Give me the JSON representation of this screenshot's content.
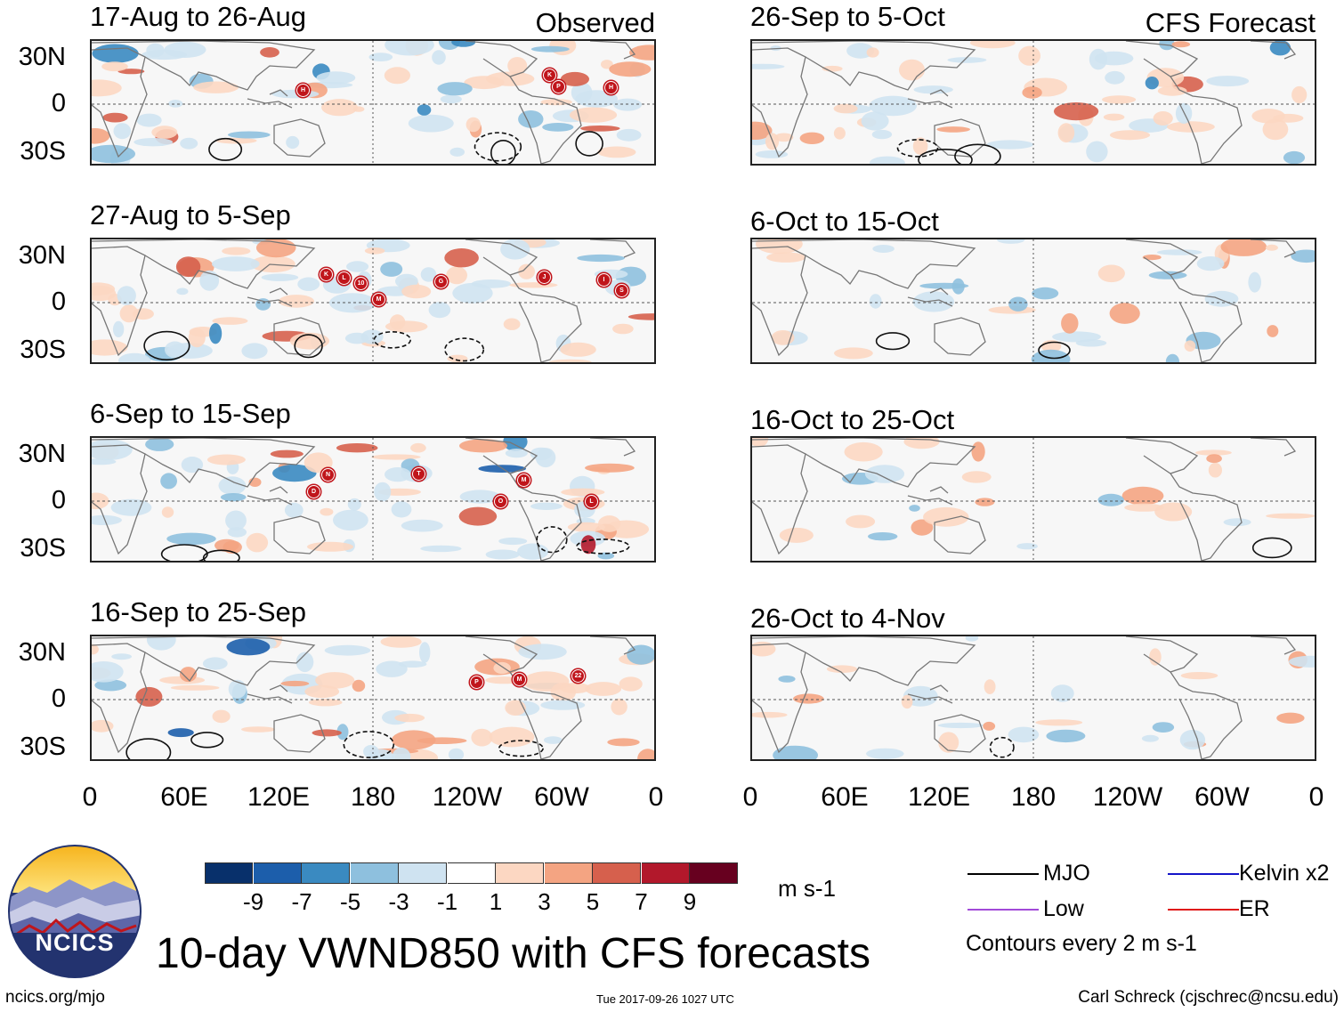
{
  "header": {
    "observed_label": "Observed",
    "forecast_label": "CFS Forecast"
  },
  "observed_panels": [
    {
      "period": "17-Aug to 26-Aug",
      "storms": [
        "H",
        "P",
        "K",
        "H"
      ]
    },
    {
      "period": "27-Aug to 5-Sep",
      "storms": [
        "M",
        "G",
        "S",
        "L",
        "K",
        "10",
        "J",
        "I"
      ]
    },
    {
      "period": "6-Sep to 15-Sep",
      "storms": [
        "D",
        "T",
        "O",
        "N",
        "M",
        "L"
      ]
    },
    {
      "period": "16-Sep to 25-Sep",
      "storms": [
        "22",
        "P",
        "M"
      ]
    }
  ],
  "forecast_panels": [
    {
      "period": "26-Sep to 5-Oct"
    },
    {
      "period": "6-Oct to 15-Oct"
    },
    {
      "period": "16-Oct to 25-Oct"
    },
    {
      "period": "26-Oct to 4-Nov"
    }
  ],
  "axes": {
    "lat_labels": [
      "30N",
      "0",
      "30S"
    ],
    "lon_labels": [
      "0",
      "60E",
      "120E",
      "180",
      "120W",
      "60W",
      "0"
    ]
  },
  "colorbar": {
    "colors": [
      "#08306b",
      "#1c5eab",
      "#3a8ac1",
      "#8ec0de",
      "#cfe3f1",
      "#ffffff",
      "#fcd7c2",
      "#f4a482",
      "#d6604d",
      "#b2182b",
      "#67001f"
    ],
    "tick_labels": [
      "-9",
      "-7",
      "-5",
      "-3",
      "-1",
      "1",
      "3",
      "5",
      "7",
      "9"
    ],
    "units": "m s-1"
  },
  "legend": {
    "items": [
      {
        "label": "MJO",
        "color": "#000000"
      },
      {
        "label": "Kelvin x2",
        "color": "#1515c8"
      },
      {
        "label": "Low",
        "color": "#a24ad8"
      },
      {
        "label": "ER",
        "color": "#e01818"
      }
    ],
    "contour_note": "Contours every 2 m s-1"
  },
  "logo": {
    "text": "NCICS"
  },
  "footer": {
    "title": "10-day VWND850 with CFS forecasts",
    "url": "ncics.org/mjo",
    "timestamp": "Tue 2017-09-26 1027 UTC",
    "author": "Carl Schreck (cjschrec@ncsu.edu)"
  }
}
